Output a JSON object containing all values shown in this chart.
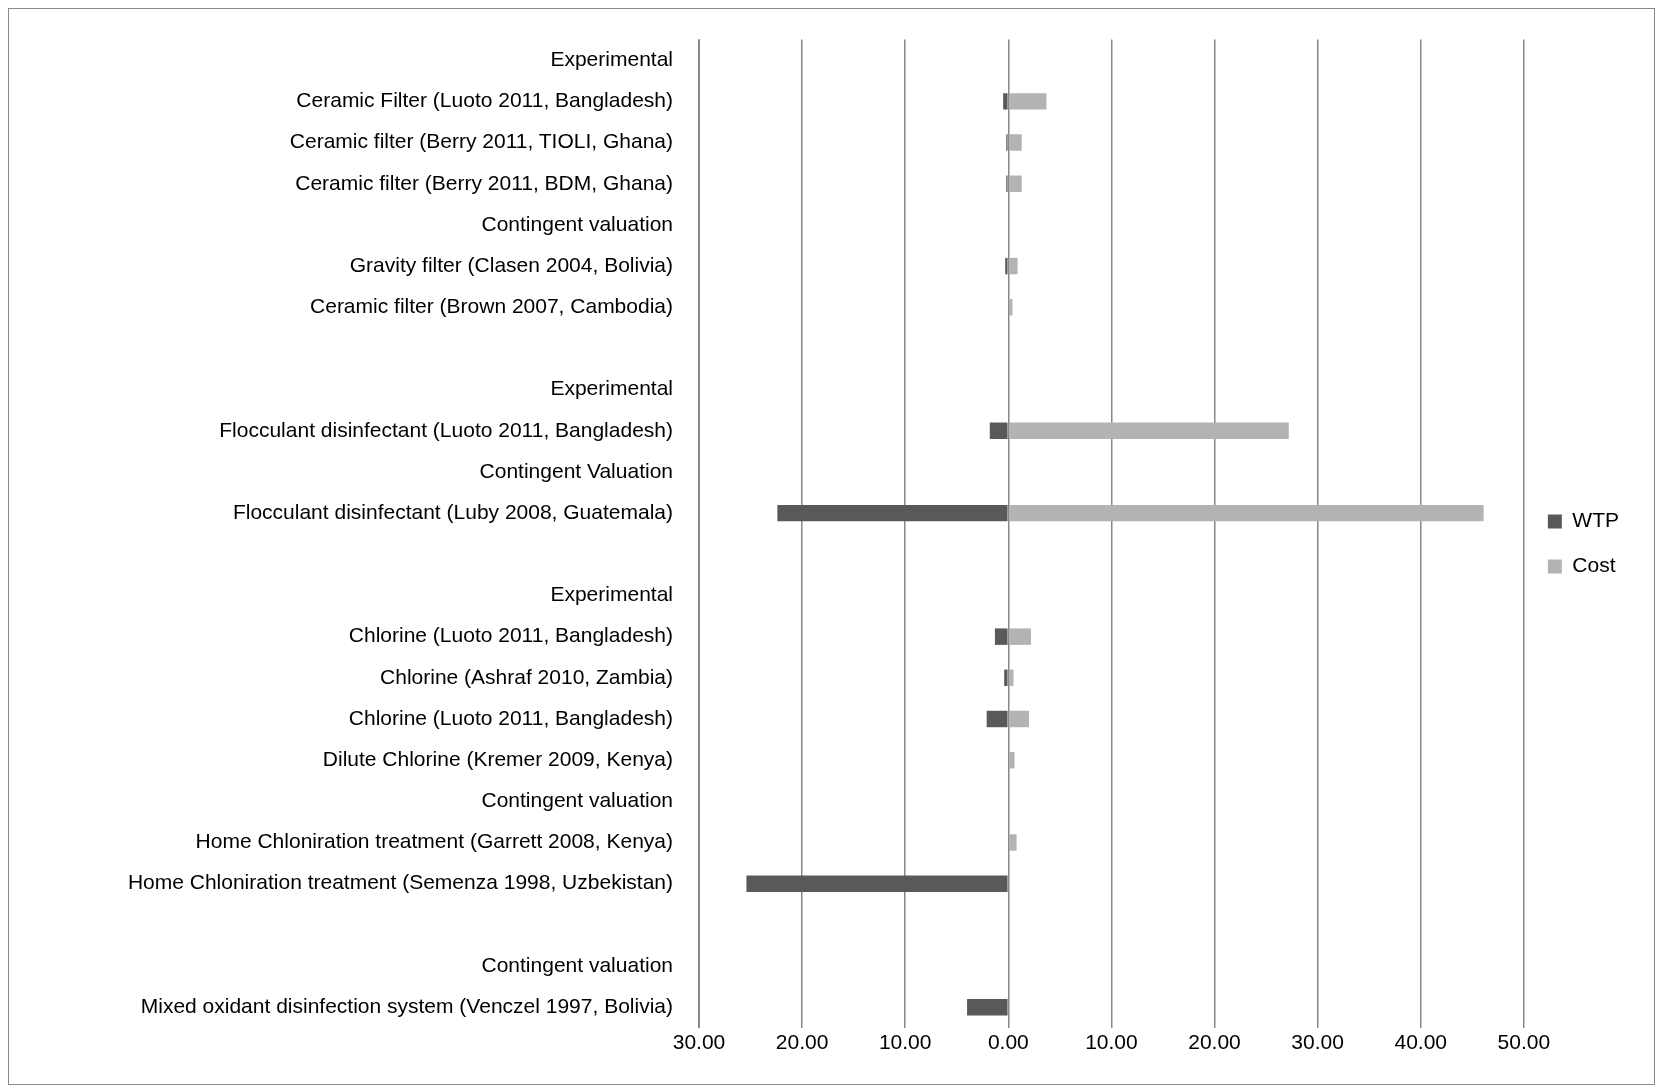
{
  "chart_data": {
    "type": "bar",
    "orientation": "horizontal",
    "categories": [
      "Experimental",
      "Ceramic Filter (Luoto 2011, Bangladesh)",
      "Ceramic filter (Berry 2011, TIOLI, Ghana)",
      "Ceramic filter (Berry 2011, BDM, Ghana)",
      "Contingent valuation",
      "Gravity filter (Clasen 2004, Bolivia)",
      "Ceramic filter (Brown 2007, Cambodia)",
      null,
      "Experimental",
      "Flocculant disinfectant (Luoto 2011, Bangladesh)",
      "Contingent Valuation",
      "Flocculant disinfectant (Luby 2008, Guatemala)",
      null,
      "Experimental",
      "Chlorine (Luoto 2011, Bangladesh)",
      "Chlorine (Ashraf 2010, Zambia)",
      "Chlorine (Luoto 2011, Bangladesh)",
      "Dilute Chlorine (Kremer 2009, Kenya)",
      "Contingent valuation",
      "Home Chloniration treatment (Garrett 2008, Kenya)",
      "Home Chloniration treatment (Semenza 1998, Uzbekistan)",
      null,
      "Contingent valuation",
      "Mixed oxidant disinfection system (Venczel 1997, Bolivia)"
    ],
    "series": [
      {
        "name": "WTP",
        "color": "#595959",
        "values": [
          null,
          -0.5,
          -0.2,
          -0.2,
          null,
          -0.3,
          null,
          null,
          null,
          -1.8,
          null,
          -22.4,
          null,
          null,
          -1.3,
          -0.4,
          -2.1,
          null,
          null,
          null,
          -25.4,
          null,
          null,
          -4.0
        ]
      },
      {
        "name": "Cost",
        "color": "#b3b3b3",
        "values": [
          null,
          3.7,
          1.3,
          1.3,
          null,
          0.9,
          0.4,
          null,
          null,
          27.2,
          null,
          46.1,
          null,
          null,
          2.2,
          0.5,
          2.0,
          0.6,
          null,
          0.8,
          null,
          null,
          null,
          null
        ]
      }
    ],
    "xlim": [
      -30,
      50
    ],
    "xticks": [
      {
        "value": -30,
        "label": "30.00"
      },
      {
        "value": -20,
        "label": "20.00"
      },
      {
        "value": -10,
        "label": "10.00"
      },
      {
        "value": 0,
        "label": "0.00"
      },
      {
        "value": 10,
        "label": "10.00"
      },
      {
        "value": 20,
        "label": "20.00"
      },
      {
        "value": 30,
        "label": "30.00"
      },
      {
        "value": 40,
        "label": "40.00"
      },
      {
        "value": 50,
        "label": "50.00"
      }
    ],
    "grid": "x",
    "legend": "right"
  }
}
